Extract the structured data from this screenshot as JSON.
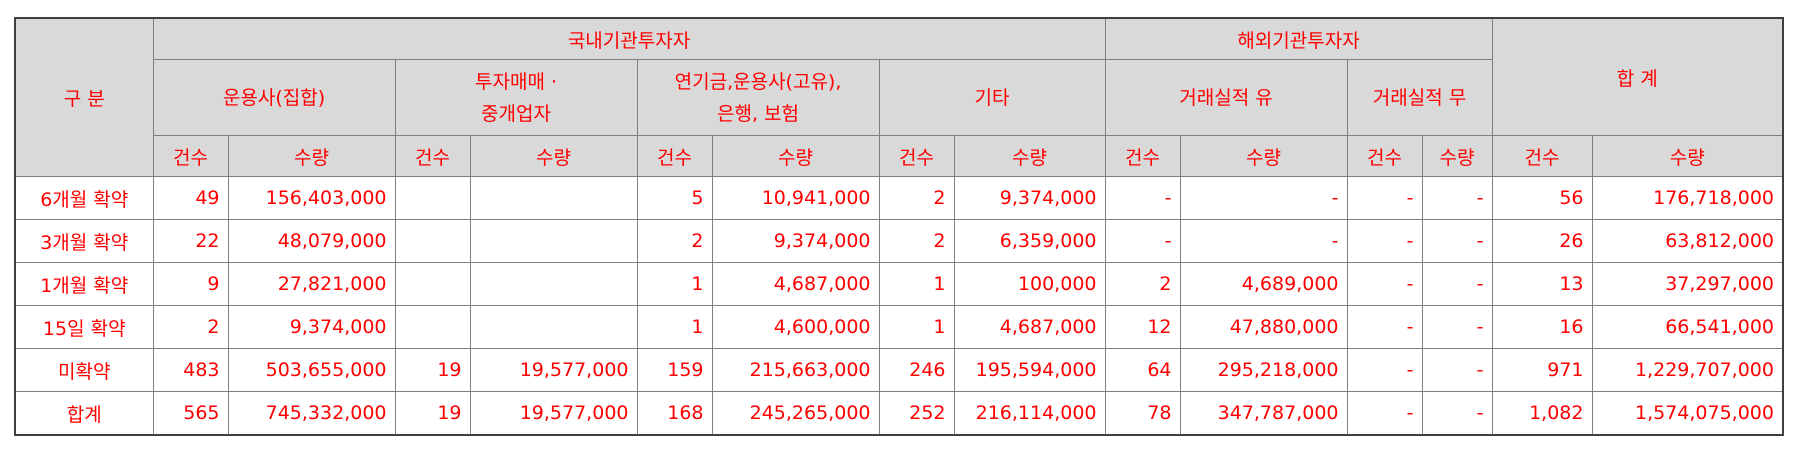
{
  "header": {
    "category": "구 분",
    "domestic": "국내기관투자자",
    "foreign": "해외기관투자자",
    "total": "합 계",
    "sub": {
      "asset_mgmt": "운용사(집합)",
      "dealer_line1": "투자매매 ·",
      "dealer_line2": "중개업자",
      "pension_line1": "연기금,운용사(고유),",
      "pension_line2": "은행, 보험",
      "others": "기타",
      "with_record": "거래실적 유",
      "without_record": "거래실적 무"
    },
    "count": "건수",
    "quantity": "수량"
  },
  "rows": [
    {
      "label": "6개월 확약",
      "cells": [
        "49",
        "156,403,000",
        "",
        "",
        "5",
        "10,941,000",
        "2",
        "9,374,000",
        "-",
        "-",
        "-",
        "-",
        "56",
        "176,718,000"
      ]
    },
    {
      "label": "3개월 확약",
      "cells": [
        "22",
        "48,079,000",
        "",
        "",
        "2",
        "9,374,000",
        "2",
        "6,359,000",
        "-",
        "-",
        "-",
        "-",
        "26",
        "63,812,000"
      ]
    },
    {
      "label": "1개월 확약",
      "cells": [
        "9",
        "27,821,000",
        "",
        "",
        "1",
        "4,687,000",
        "1",
        "100,000",
        "2",
        "4,689,000",
        "-",
        "-",
        "13",
        "37,297,000"
      ]
    },
    {
      "label": "15일 확약",
      "cells": [
        "2",
        "9,374,000",
        "",
        "",
        "1",
        "4,600,000",
        "1",
        "4,687,000",
        "12",
        "47,880,000",
        "-",
        "-",
        "16",
        "66,541,000"
      ]
    },
    {
      "label": "미확약",
      "cells": [
        "483",
        "503,655,000",
        "19",
        "19,577,000",
        "159",
        "215,663,000",
        "246",
        "195,594,000",
        "64",
        "295,218,000",
        "-",
        "-",
        "971",
        "1,229,707,000"
      ]
    },
    {
      "label": "합계",
      "cells": [
        "565",
        "745,332,000",
        "19",
        "19,577,000",
        "168",
        "245,265,000",
        "252",
        "216,114,000",
        "78",
        "347,787,000",
        "-",
        "-",
        "1,082",
        "1,574,075,000"
      ]
    }
  ],
  "colors": {
    "text": "#ff0000",
    "header_bg": "#d9d9d9",
    "border": "#7f7f7f"
  }
}
